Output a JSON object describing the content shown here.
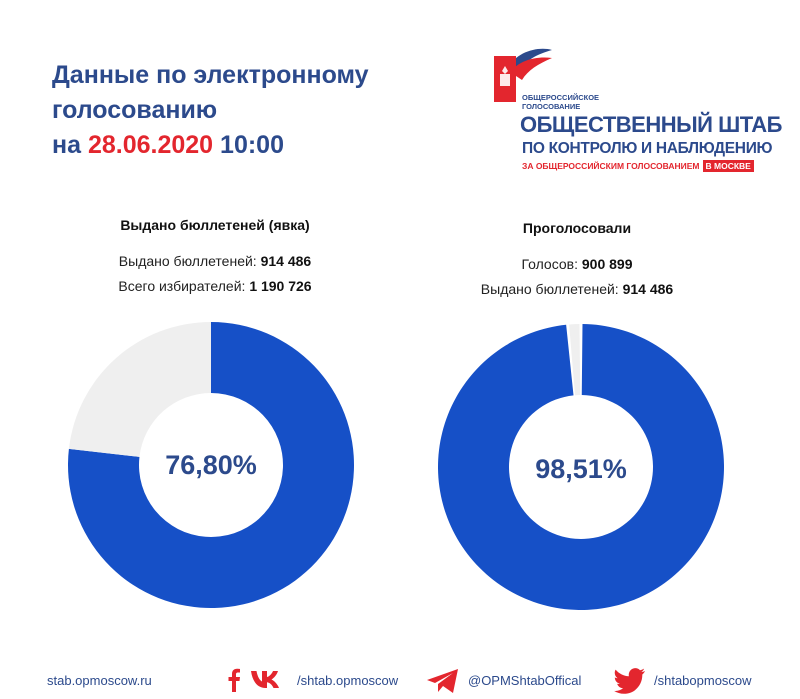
{
  "header": {
    "title_line1": "Данные по электронному",
    "title_line2": "голосованию",
    "title_prefix": "на",
    "title_date": "28.06.2020",
    "title_time": "10:00"
  },
  "logo": {
    "small_line1": "ОБЩЕРОССИЙСКОЕ",
    "small_line2": "ГОЛОСОВАНИЕ",
    "line1": "ОБЩЕСТВЕННЫЙ ШТАБ",
    "line2": "ПО КОНТРОЛЮ И НАБЛЮДЕНИЮ",
    "line3": "ЗА ОБЩЕРОССИЙСКИМ ГОЛОСОВАНИЕМ",
    "badge": "В МОСКВЕ"
  },
  "turnout": {
    "title": "Выдано бюллетеней (явка)",
    "row1_label": "Выдано бюллетеней:",
    "row1_value": "914 486",
    "row2_label": "Всего избирателей:",
    "row2_value": "1 190 726",
    "center_label": "76,80%"
  },
  "voted": {
    "title": "Проголосовали",
    "row1_label": "Голосов:",
    "row1_value": "900 899",
    "row2_label": "Выдано бюллетеней:",
    "row2_value": "914 486",
    "center_label": "98,51%"
  },
  "chart_data": [
    {
      "type": "pie",
      "donut": true,
      "title": "Выдано бюллетеней (явка)",
      "values": [
        76.8,
        23.2
      ],
      "center_label": "76,80%",
      "colors": [
        "#1650c7",
        "#efefef"
      ]
    },
    {
      "type": "pie",
      "donut": true,
      "title": "Проголосовали",
      "values": [
        98.51,
        1.49
      ],
      "center_label": "98,51%",
      "colors": [
        "#1650c7",
        "#efefef"
      ]
    }
  ],
  "footer": {
    "url": "stab.opmoscow.ru",
    "vk": "/shtab.opmoscow",
    "telegram": "@OPMShtabOffical",
    "twitter": "/shtabopmoscow"
  },
  "colors": {
    "primary_blue": "#1650c7",
    "title_blue": "#2c4a8c",
    "accent_red": "#e3262e",
    "track_grey": "#efefef"
  },
  "icons": [
    "facebook-icon",
    "vk-icon",
    "telegram-icon",
    "twitter-icon",
    "emblem-icon"
  ]
}
